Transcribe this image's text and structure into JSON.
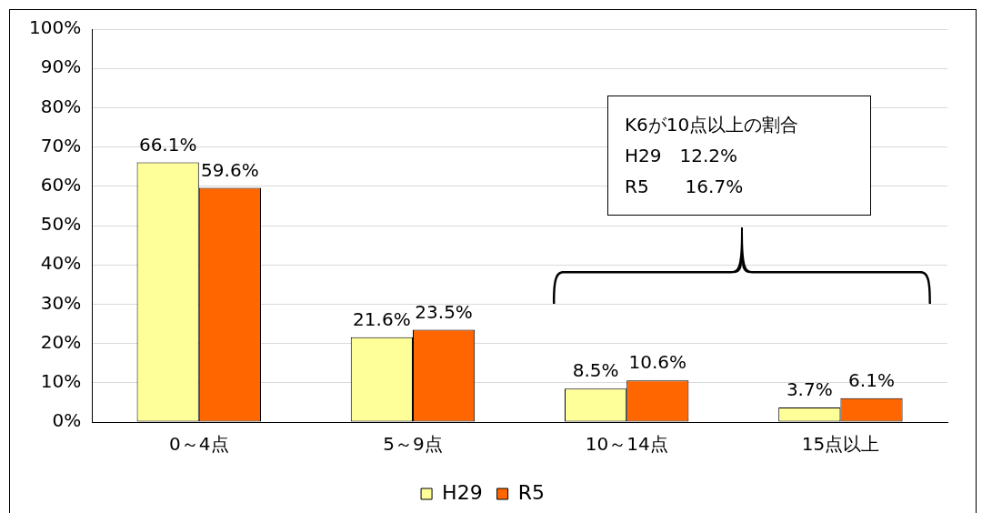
{
  "chart_data": {
    "type": "bar",
    "categories": [
      "0～4点",
      "5～9点",
      "10～14点",
      "15点以上"
    ],
    "series": [
      {
        "name": "H29",
        "color": "#ffff99",
        "values": [
          66.1,
          21.6,
          8.5,
          3.7
        ],
        "value_labels": [
          "66.1%",
          "21.6%",
          "8.5%",
          "3.7%"
        ]
      },
      {
        "name": "R5",
        "color": "#ff6600",
        "values": [
          59.6,
          23.5,
          10.6,
          6.1
        ],
        "value_labels": [
          "59.6%",
          "23.5%",
          "10.6%",
          "6.1%"
        ]
      }
    ],
    "ylim": [
      0,
      100
    ],
    "yticks": [
      {
        "value": 0,
        "label": "0%"
      },
      {
        "value": 10,
        "label": "10%"
      },
      {
        "value": 20,
        "label": "20%"
      },
      {
        "value": 30,
        "label": "30%"
      },
      {
        "value": 40,
        "label": "40%"
      },
      {
        "value": 50,
        "label": "50%"
      },
      {
        "value": 60,
        "label": "60%"
      },
      {
        "value": 70,
        "label": "70%"
      },
      {
        "value": 80,
        "label": "80%"
      },
      {
        "value": 90,
        "label": "90%"
      },
      {
        "value": 100,
        "label": "100%"
      }
    ],
    "grid": "y",
    "legend": "bottom",
    "annotations": [
      "K6が10点以上の割合",
      "H29　12.2%",
      "R5　　16.7%"
    ]
  }
}
